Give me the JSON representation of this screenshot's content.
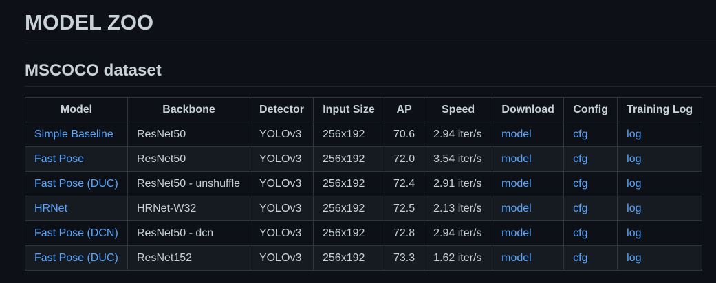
{
  "page": {
    "title": "MODEL ZOO",
    "section_title": "MSCOCO dataset"
  },
  "table": {
    "headers": [
      "Model",
      "Backbone",
      "Detector",
      "Input Size",
      "AP",
      "Speed",
      "Download",
      "Config",
      "Training Log"
    ],
    "rows": [
      {
        "model": "Simple Baseline",
        "backbone": "ResNet50",
        "detector": "YOLOv3",
        "input_size": "256x192",
        "ap": "70.6",
        "speed": "2.94 iter/s",
        "download": "model",
        "config": "cfg",
        "log": "log"
      },
      {
        "model": "Fast Pose",
        "backbone": "ResNet50",
        "detector": "YOLOv3",
        "input_size": "256x192",
        "ap": "72.0",
        "speed": "3.54 iter/s",
        "download": "model",
        "config": "cfg",
        "log": "log"
      },
      {
        "model": "Fast Pose (DUC)",
        "backbone": "ResNet50 - unshuffle",
        "detector": "YOLOv3",
        "input_size": "256x192",
        "ap": "72.4",
        "speed": "2.91 iter/s",
        "download": "model",
        "config": "cfg",
        "log": "log"
      },
      {
        "model": "HRNet",
        "backbone": "HRNet-W32",
        "detector": "YOLOv3",
        "input_size": "256x192",
        "ap": "72.5",
        "speed": "2.13 iter/s",
        "download": "model",
        "config": "cfg",
        "log": "log"
      },
      {
        "model": "Fast Pose (DCN)",
        "backbone": "ResNet50 - dcn",
        "detector": "YOLOv3",
        "input_size": "256x192",
        "ap": "72.8",
        "speed": "2.94 iter/s",
        "download": "model",
        "config": "cfg",
        "log": "log"
      },
      {
        "model": "Fast Pose (DUC)",
        "backbone": "ResNet152",
        "detector": "YOLOv3",
        "input_size": "256x192",
        "ap": "73.3",
        "speed": "1.62 iter/s",
        "download": "model",
        "config": "cfg",
        "log": "log"
      }
    ]
  },
  "colors": {
    "background": "#0d1117",
    "text": "#c9d1d9",
    "link": "#58a6ff",
    "border": "#30363d"
  }
}
